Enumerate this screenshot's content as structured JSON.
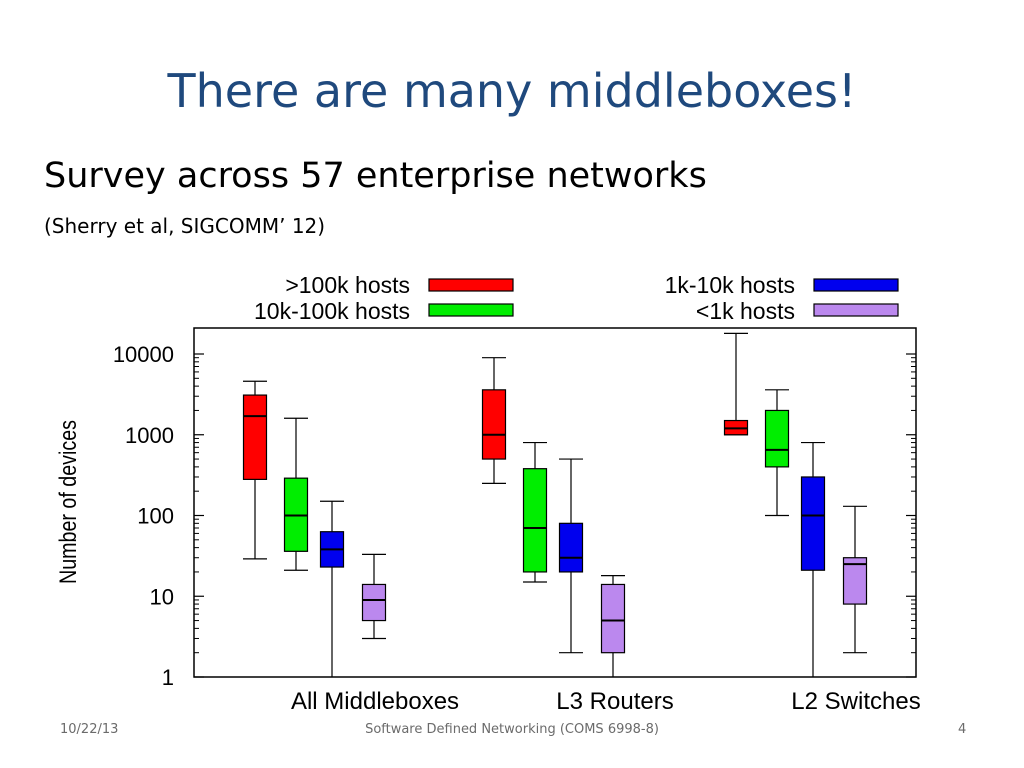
{
  "slide": {
    "title": "There are many middleboxes!",
    "subtitle": "Survey across 57 enterprise networks",
    "citation": "(Sherry et al, SIGCOMM’ 12)"
  },
  "footer": {
    "date": "10/22/13",
    "center": "Software Defined Networking (COMS 6998-8)",
    "page": "4"
  },
  "chart_data": {
    "type": "boxplot",
    "scale": "log",
    "ylabel": "Number of devices",
    "ylim": [
      1,
      20000
    ],
    "yticks": [
      "10000",
      "1000",
      "100",
      "10",
      "1"
    ],
    "ytick_values": [
      10000,
      1000,
      100,
      10,
      1
    ],
    "legend_position": "top",
    "categories": [
      "All Middleboxes",
      "L3 Routers",
      "L2 Switches"
    ],
    "series": [
      {
        "name": ">100k hosts",
        "color": "#ff0000",
        "boxes": [
          {
            "min": 29,
            "q1": 280,
            "median": 1700,
            "q3": 3100,
            "max": 4600
          },
          {
            "min": 250,
            "q1": 500,
            "median": 1000,
            "q3": 3600,
            "max": 9000
          },
          {
            "min": 1000,
            "q1": 1000,
            "median": 1200,
            "q3": 1500,
            "max": 18000
          }
        ]
      },
      {
        "name": "10k-100k hosts",
        "color": "#00ee00",
        "boxes": [
          {
            "min": 21,
            "q1": 36,
            "median": 100,
            "q3": 290,
            "max": 1600
          },
          {
            "min": 15,
            "q1": 20,
            "median": 70,
            "q3": 380,
            "max": 800
          },
          {
            "min": 100,
            "q1": 400,
            "median": 650,
            "q3": 2000,
            "max": 3600
          }
        ]
      },
      {
        "name": "1k-10k hosts",
        "color": "#0000ee",
        "boxes": [
          {
            "min": 1,
            "q1": 23,
            "median": 38,
            "q3": 63,
            "max": 150
          },
          {
            "min": 2,
            "q1": 20,
            "median": 30,
            "q3": 80,
            "max": 500
          },
          {
            "min": 1,
            "q1": 21,
            "median": 100,
            "q3": 300,
            "max": 800
          }
        ]
      },
      {
        "name": "<1k hosts",
        "color": "#bb88ee",
        "boxes": [
          {
            "min": 3,
            "q1": 5,
            "median": 9,
            "q3": 14,
            "max": 33
          },
          {
            "min": 1,
            "q1": 2,
            "median": 5,
            "q3": 14,
            "max": 18
          },
          {
            "min": 2,
            "q1": 8,
            "median": 25,
            "q3": 30,
            "max": 130
          }
        ]
      }
    ]
  }
}
